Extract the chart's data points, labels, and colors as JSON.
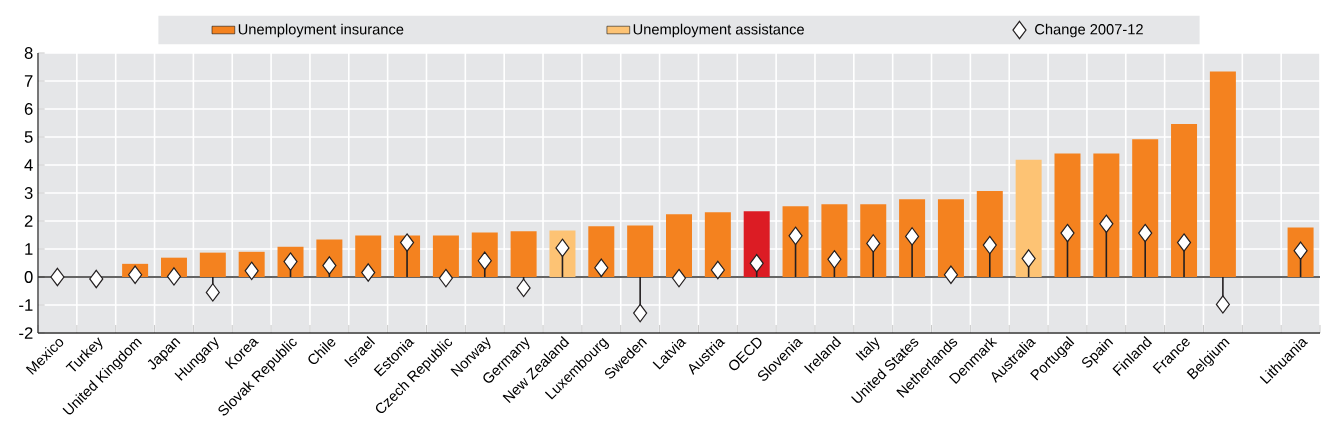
{
  "chart_data": {
    "type": "bar",
    "categories": [
      "Mexico",
      "Turkey",
      "United Kingdom",
      "Japan",
      "Hungary",
      "Korea",
      "Slovak Republic",
      "Chile",
      "Israel",
      "Estonia",
      "Czech Republic",
      "Norway",
      "Germany",
      "New Zealand",
      "Luxembourg",
      "Sweden",
      "Latvia",
      "Austria",
      "OECD",
      "Slovenia",
      "Ireland",
      "Italy",
      "United States",
      "Netherlands",
      "Denmark",
      "Australia",
      "Portugal",
      "Spain",
      "Finland",
      "France",
      "Belgium",
      null,
      "Lithuania"
    ],
    "series": [
      {
        "name": "Unemployment insurance",
        "color": "#f4821f",
        "colors": [
          "#f4821f",
          "#f4821f",
          "#f4821f",
          "#f4821f",
          "#f4821f",
          "#f4821f",
          "#f4821f",
          "#f4821f",
          "#f4821f",
          "#f4821f",
          "#f4821f",
          "#f4821f",
          "#f4821f",
          "#f4821f",
          "#f4821f",
          "#f4821f",
          "#f4821f",
          "#f4821f",
          "#dc1c24",
          "#f4821f",
          "#f4821f",
          "#f4821f",
          "#f4821f",
          "#f4821f",
          "#f4821f",
          "#f4821f",
          "#f4821f",
          "#f4821f",
          "#f4821f",
          "#f4821f",
          "#f4821f",
          "#f4821f",
          "#f4821f"
        ],
        "values": [
          0,
          0,
          0.47,
          0.69,
          0.87,
          0.9,
          1.08,
          1.34,
          1.48,
          1.48,
          1.48,
          1.59,
          1.63,
          null,
          1.81,
          1.84,
          2.24,
          2.31,
          2.35,
          2.53,
          2.6,
          2.6,
          2.78,
          2.78,
          3.07,
          null,
          4.41,
          4.41,
          4.92,
          5.46,
          7.34,
          null,
          1.77
        ]
      },
      {
        "name": "Unemployment assistance",
        "color": "#fdc374",
        "values": [
          null,
          null,
          null,
          null,
          null,
          null,
          null,
          null,
          null,
          null,
          null,
          null,
          null,
          1.66,
          null,
          null,
          null,
          null,
          null,
          null,
          null,
          null,
          null,
          null,
          null,
          4.19,
          null,
          null,
          null,
          null,
          null,
          null,
          null
        ]
      },
      {
        "name": "Change 2007-12",
        "type": "lollipop",
        "color": "#231f20",
        "marker": "diamond",
        "values": [
          0,
          -0.07,
          0.08,
          0.02,
          -0.55,
          0.22,
          0.55,
          0.41,
          0.16,
          1.23,
          -0.04,
          0.58,
          -0.39,
          1.04,
          0.33,
          -1.29,
          -0.04,
          0.25,
          0.49,
          1.47,
          0.63,
          1.2,
          1.45,
          0.08,
          1.14,
          0.66,
          1.57,
          1.9,
          1.57,
          1.23,
          -0.98,
          null,
          0.94
        ]
      }
    ],
    "ylim": [
      -2,
      8
    ],
    "yticks": [
      -2,
      -1,
      0,
      1,
      2,
      3,
      4,
      5,
      6,
      7,
      8
    ],
    "grid": true,
    "legend": "top"
  }
}
